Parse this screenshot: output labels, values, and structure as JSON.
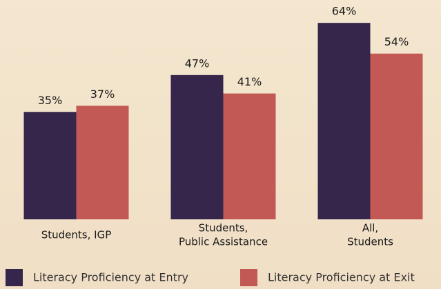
{
  "chart_data": {
    "type": "bar",
    "categories": [
      [
        "Students, IGP"
      ],
      [
        "Students,",
        "Public Assistance"
      ],
      [
        "All,",
        "Students"
      ]
    ],
    "series": [
      {
        "name": "Literacy Proficiency at Entry",
        "color": "#36264b",
        "values": [
          35,
          47,
          64
        ],
        "value_labels": [
          "35%",
          "47%",
          "64%"
        ]
      },
      {
        "name": "Literacy Proficiency at Exit",
        "color": "#c35955",
        "values": [
          37,
          41,
          54
        ],
        "value_labels": [
          "37%",
          "41%",
          "54%"
        ]
      }
    ],
    "ylim": [
      0,
      70
    ]
  }
}
